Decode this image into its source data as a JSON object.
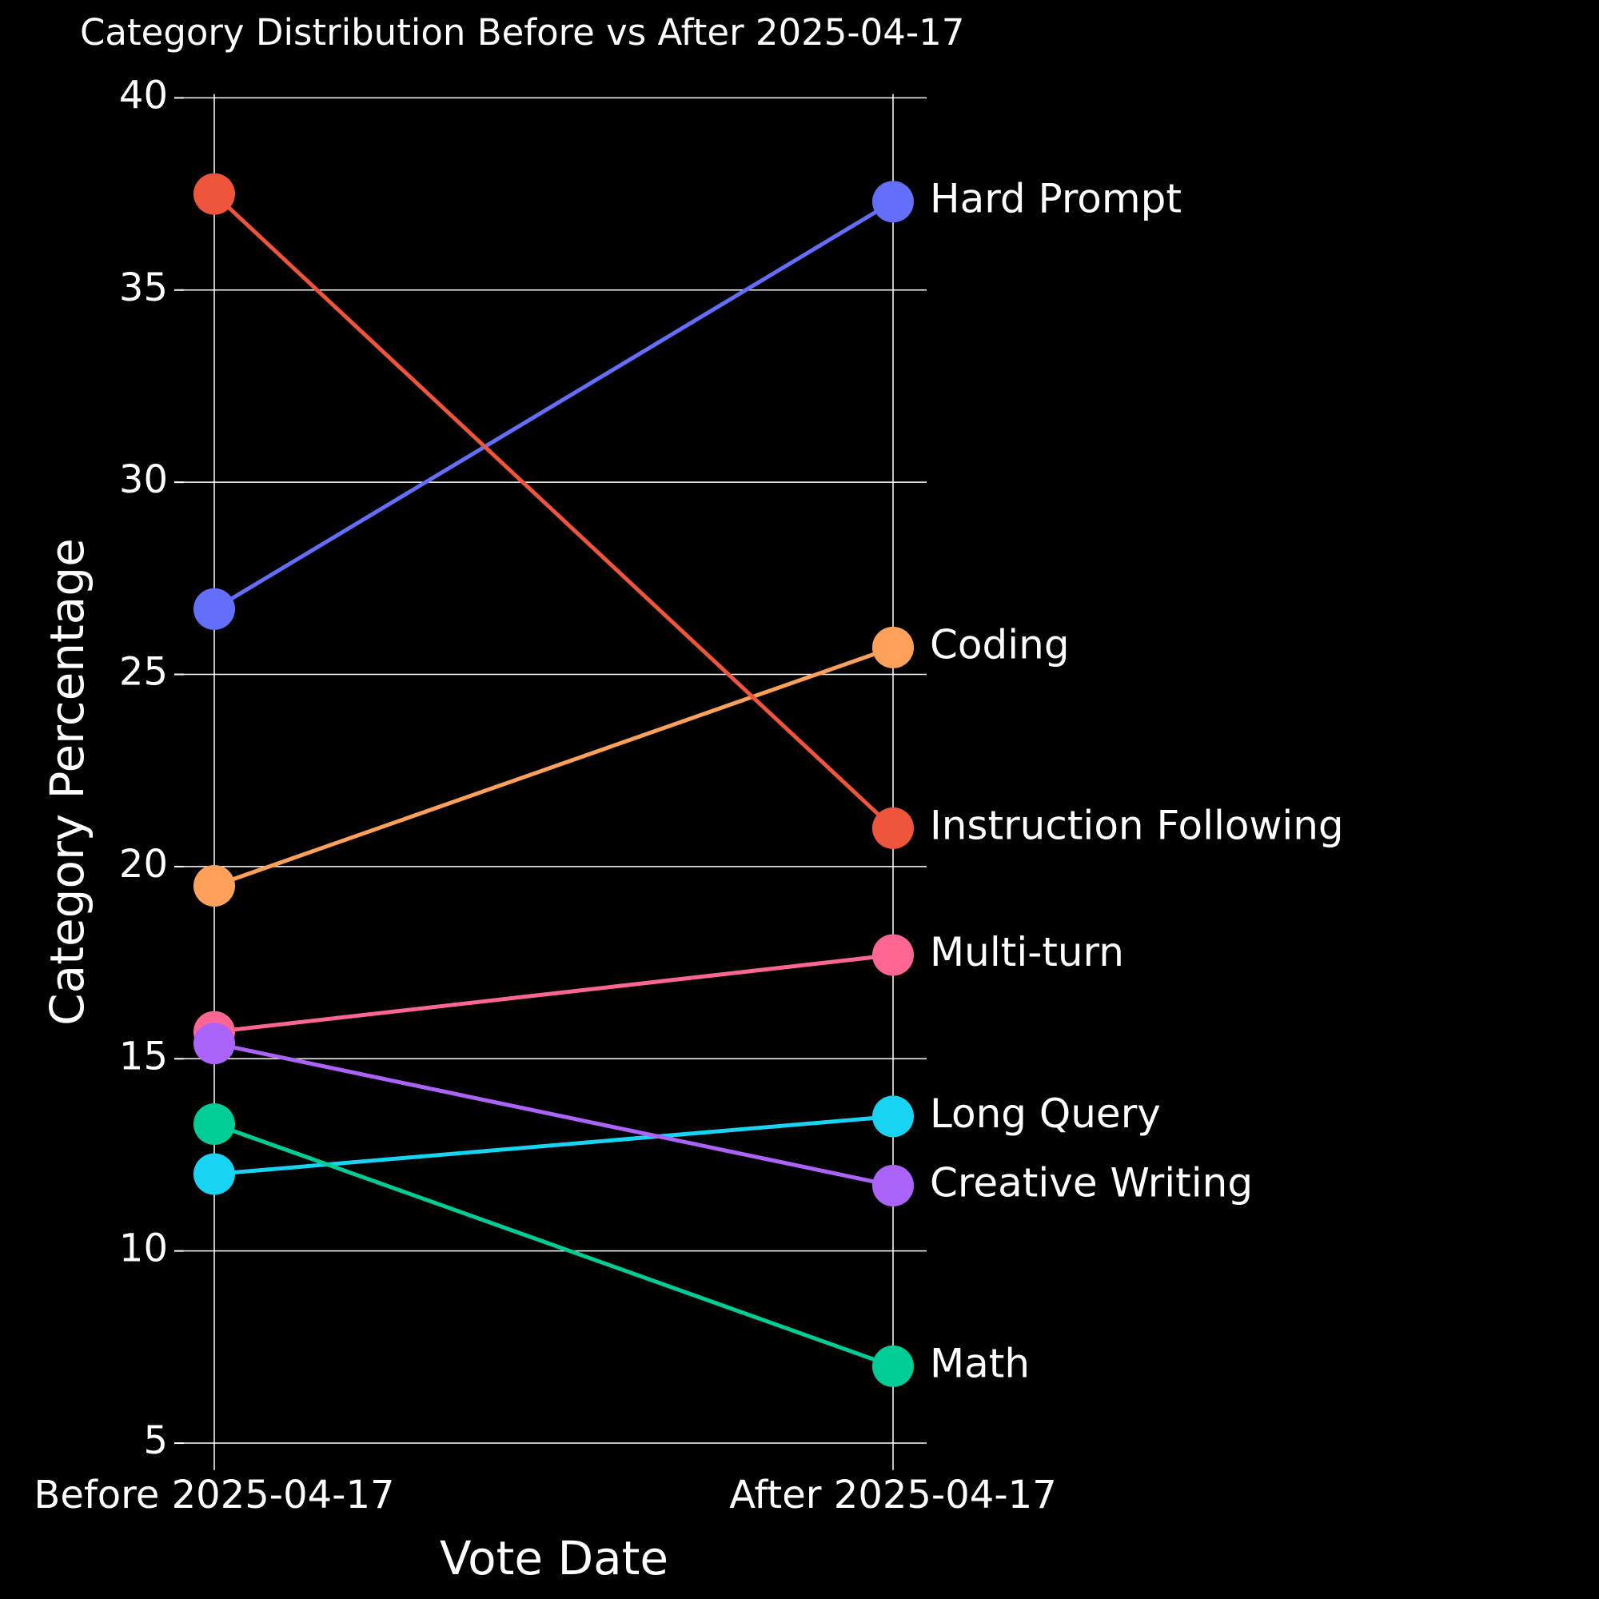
{
  "chart_data": {
    "type": "slope",
    "title": "Category Distribution Before vs After 2025-04-17",
    "x_label": "Vote Date",
    "y_label": "Category Percentage",
    "categories": [
      "Before 2025-04-17",
      "After 2025-04-17"
    ],
    "series": [
      {
        "name": "Hard Prompt",
        "color": "#636efa",
        "values": [
          26.7,
          37.3
        ]
      },
      {
        "name": "Coding",
        "color": "#ffa15a",
        "values": [
          19.5,
          25.7
        ]
      },
      {
        "name": "Instruction Following",
        "color": "#ef553b",
        "values": [
          37.5,
          21.0
        ]
      },
      {
        "name": "Multi-turn",
        "color": "#ff6692",
        "values": [
          15.7,
          17.7
        ]
      },
      {
        "name": "Long Query",
        "color": "#19d3f3",
        "values": [
          12.0,
          13.5
        ]
      },
      {
        "name": "Creative Writing",
        "color": "#ab63fa",
        "values": [
          15.4,
          11.7
        ]
      },
      {
        "name": "Math",
        "color": "#00cc96",
        "values": [
          13.3,
          7.0
        ]
      }
    ],
    "ylim": [
      4.3,
      40.1
    ],
    "yticks": [
      5,
      10,
      15,
      20,
      25,
      30,
      35,
      40
    ],
    "grid": true
  }
}
